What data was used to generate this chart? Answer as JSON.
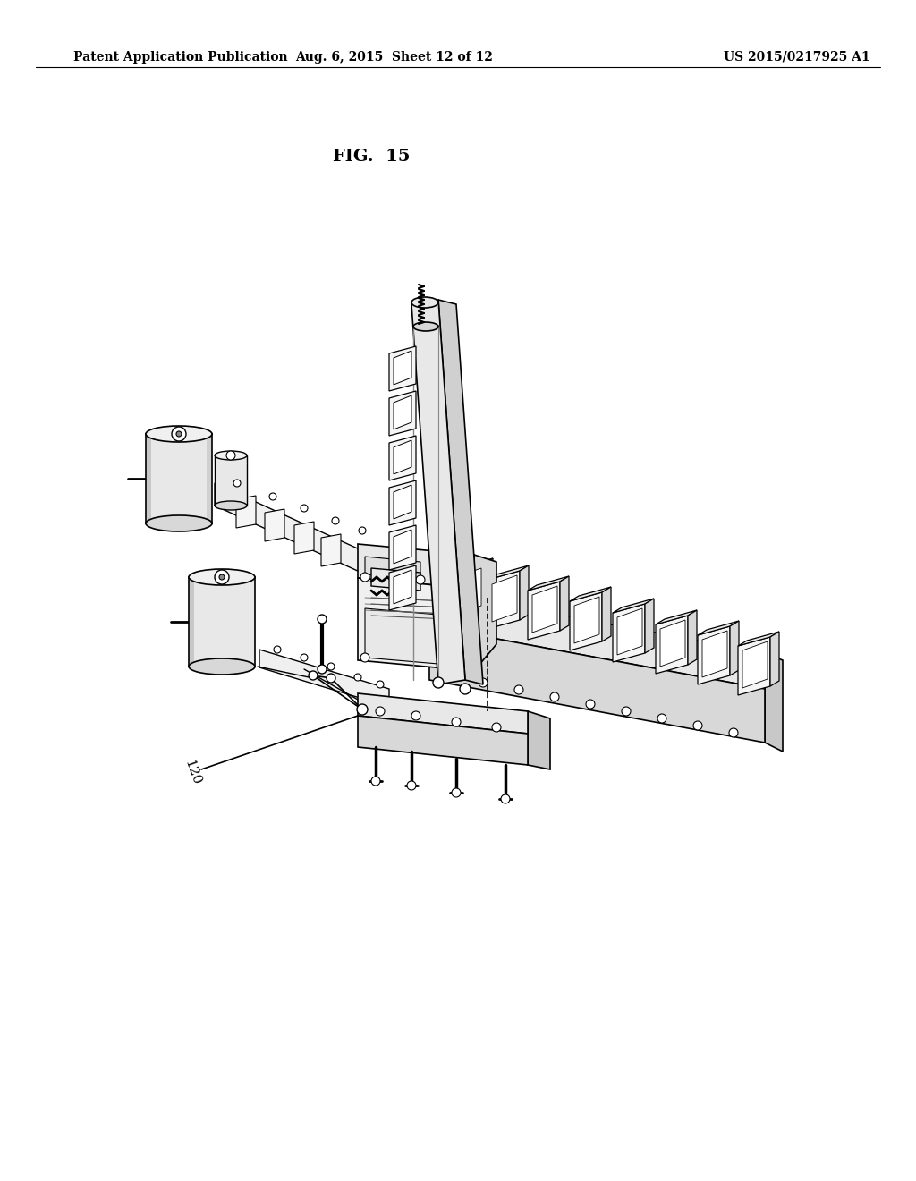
{
  "background_color": "#ffffff",
  "header_left": "Patent Application Publication",
  "header_mid": "Aug. 6, 2015  Sheet 12 of 12",
  "header_right": "US 2015/0217925 A1",
  "fig_label": "FIG.  15",
  "annotation_label": "120",
  "line_color": "#000000",
  "lw": 1.0,
  "fig_w": 10.24,
  "fig_h": 13.2,
  "dpi": 100
}
